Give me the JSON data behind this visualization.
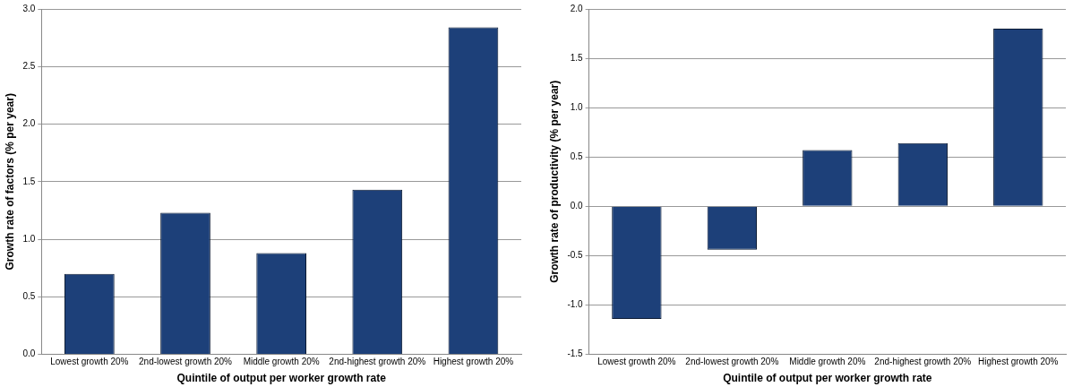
{
  "chart_data": [
    {
      "type": "bar",
      "categories": [
        "Lowest growth 20%",
        "2nd-lowest growth 20%",
        "Middle growth 20%",
        "2nd-highest growth 20%",
        "Highest growth 20%"
      ],
      "values": [
        0.7,
        1.23,
        0.88,
        1.43,
        2.84
      ],
      "color": "#1d4079",
      "xlabel": "Quintile of output per worker growth rate",
      "ylabel": "Growth rate of factors (% per year)",
      "ylim": [
        0,
        3
      ],
      "yticks": [
        {
          "value": 0,
          "label": "0.0"
        },
        {
          "value": 0.5,
          "label": "0.5"
        },
        {
          "value": 1,
          "label": "1.0"
        },
        {
          "value": 1.5,
          "label": "1.5"
        },
        {
          "value": 2,
          "label": "2.0"
        },
        {
          "value": 2.5,
          "label": "2.5"
        },
        {
          "value": 3,
          "label": "3.0"
        }
      ],
      "grid": "y",
      "legend": false
    },
    {
      "type": "bar",
      "categories": [
        "Lowest growth 20%",
        "2nd-lowest growth 20%",
        "Middle growth 20%",
        "2nd-highest growth 20%",
        "Highest growth 20%"
      ],
      "values": [
        -1.14,
        -0.44,
        0.57,
        0.64,
        1.8
      ],
      "color": "#1d4079",
      "xlabel": "Quintile of output per worker growth rate",
      "ylabel": "Growth rate of productivity (% per year)",
      "ylim": [
        -1.5,
        2
      ],
      "yticks": [
        {
          "value": -1.5,
          "label": "-1.5"
        },
        {
          "value": -1,
          "label": "-1.0"
        },
        {
          "value": -0.5,
          "label": "-0.5"
        },
        {
          "value": 0,
          "label": "0.0"
        },
        {
          "value": 0.5,
          "label": "0.5"
        },
        {
          "value": 1,
          "label": "1.0"
        },
        {
          "value": 1.5,
          "label": "1.5"
        },
        {
          "value": 2,
          "label": "2.0"
        }
      ],
      "grid": "y",
      "legend": false
    }
  ]
}
